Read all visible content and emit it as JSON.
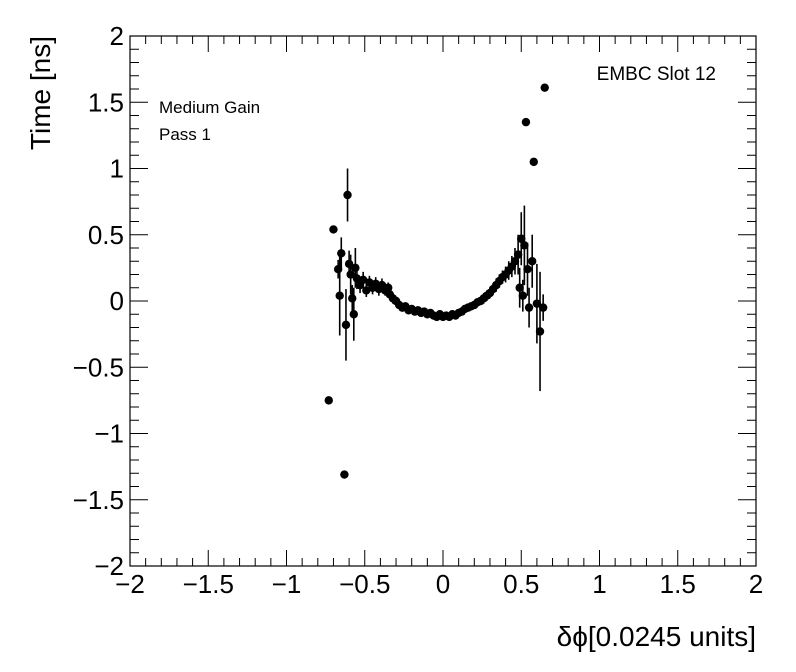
{
  "chart_data": {
    "type": "scatter",
    "xlabel": "δϕ[0.0245 units]",
    "ylabel": "Time [ns]",
    "xlim": [
      -2,
      2
    ],
    "ylim": [
      -2,
      2
    ],
    "x_ticks": [
      -2,
      -1.5,
      -1,
      -0.5,
      0,
      0.5,
      1,
      1.5,
      2
    ],
    "y_ticks": [
      -2,
      -1.5,
      -1,
      -0.5,
      0,
      0.5,
      1,
      1.5,
      2
    ],
    "x_tick_labels": [
      "−2",
      "−1.5",
      "−1",
      "−0.5",
      "0",
      "0.5",
      "1",
      "1.5",
      "2"
    ],
    "y_tick_labels": [
      "−2",
      "−1.5",
      "−1",
      "−0.5",
      "0",
      "0.5",
      "1",
      "1.5",
      "2"
    ],
    "grid": false,
    "legend": "none",
    "annotations": [
      {
        "text": "EMBC Slot 12",
        "position": "top-right"
      },
      {
        "text": "Medium Gain",
        "position": "top-left"
      },
      {
        "text": "Pass 1",
        "position": "top-left"
      }
    ],
    "marker_color": "#000000",
    "series": [
      {
        "points": [
          {
            "x": -0.73,
            "y": -0.75,
            "err": 0.0
          },
          {
            "x": -0.63,
            "y": -1.31,
            "err": 0.0
          },
          {
            "x": -0.7,
            "y": 0.54,
            "err": 0.0
          },
          {
            "x": -0.61,
            "y": 0.8,
            "err": 0.2
          },
          {
            "x": -0.67,
            "y": 0.24,
            "err": 0.07
          },
          {
            "x": -0.65,
            "y": 0.36,
            "err": 0.12
          },
          {
            "x": -0.66,
            "y": 0.04,
            "err": 0.3
          },
          {
            "x": -0.62,
            "y": -0.18,
            "err": 0.27
          },
          {
            "x": -0.6,
            "y": 0.28,
            "err": 0.1
          },
          {
            "x": -0.59,
            "y": 0.2,
            "err": 0.15
          },
          {
            "x": -0.57,
            "y": -0.1,
            "err": 0.2
          },
          {
            "x": -0.56,
            "y": 0.25,
            "err": 0.15
          },
          {
            "x": -0.58,
            "y": 0.02,
            "err": 0.1
          },
          {
            "x": -0.55,
            "y": 0.17,
            "err": 0.08
          },
          {
            "x": -0.53,
            "y": 0.12,
            "err": 0.06
          },
          {
            "x": -0.51,
            "y": 0.16,
            "err": 0.06
          },
          {
            "x": -0.49,
            "y": 0.08,
            "err": 0.05
          },
          {
            "x": -0.47,
            "y": 0.14,
            "err": 0.05
          },
          {
            "x": -0.45,
            "y": 0.1,
            "err": 0.05
          },
          {
            "x": -0.43,
            "y": 0.13,
            "err": 0.05
          },
          {
            "x": -0.41,
            "y": 0.09,
            "err": 0.05
          },
          {
            "x": -0.39,
            "y": 0.12,
            "err": 0.05
          },
          {
            "x": -0.37,
            "y": 0.08,
            "err": 0.04
          },
          {
            "x": -0.35,
            "y": 0.1,
            "err": 0.04
          },
          {
            "x": -0.34,
            "y": 0.05,
            "err": 0.04
          },
          {
            "x": -0.32,
            "y": 0.02,
            "err": 0.04
          },
          {
            "x": -0.3,
            "y": 0.0,
            "err": 0.03
          },
          {
            "x": -0.28,
            "y": -0.03,
            "err": 0.03
          },
          {
            "x": -0.26,
            "y": -0.05,
            "err": 0.03
          },
          {
            "x": -0.24,
            "y": -0.04,
            "err": 0.03
          },
          {
            "x": -0.22,
            "y": -0.07,
            "err": 0.03
          },
          {
            "x": -0.2,
            "y": -0.06,
            "err": 0.03
          },
          {
            "x": -0.18,
            "y": -0.08,
            "err": 0.03
          },
          {
            "x": -0.16,
            "y": -0.07,
            "err": 0.03
          },
          {
            "x": -0.14,
            "y": -0.09,
            "err": 0.03
          },
          {
            "x": -0.12,
            "y": -0.08,
            "err": 0.03
          },
          {
            "x": -0.1,
            "y": -0.1,
            "err": 0.03
          },
          {
            "x": -0.08,
            "y": -0.09,
            "err": 0.03
          },
          {
            "x": -0.06,
            "y": -0.11,
            "err": 0.03
          },
          {
            "x": -0.04,
            "y": -0.12,
            "err": 0.03
          },
          {
            "x": -0.02,
            "y": -0.1,
            "err": 0.03
          },
          {
            "x": 0.0,
            "y": -0.12,
            "err": 0.03
          },
          {
            "x": 0.02,
            "y": -0.11,
            "err": 0.03
          },
          {
            "x": 0.04,
            "y": -0.12,
            "err": 0.03
          },
          {
            "x": 0.06,
            "y": -0.1,
            "err": 0.03
          },
          {
            "x": 0.08,
            "y": -0.11,
            "err": 0.03
          },
          {
            "x": 0.1,
            "y": -0.09,
            "err": 0.03
          },
          {
            "x": 0.12,
            "y": -0.08,
            "err": 0.03
          },
          {
            "x": 0.14,
            "y": -0.06,
            "err": 0.03
          },
          {
            "x": 0.16,
            "y": -0.05,
            "err": 0.03
          },
          {
            "x": 0.18,
            "y": -0.04,
            "err": 0.03
          },
          {
            "x": 0.2,
            "y": -0.03,
            "err": 0.03
          },
          {
            "x": 0.22,
            "y": -0.01,
            "err": 0.03
          },
          {
            "x": 0.24,
            "y": 0.0,
            "err": 0.03
          },
          {
            "x": 0.26,
            "y": 0.02,
            "err": 0.04
          },
          {
            "x": 0.28,
            "y": 0.04,
            "err": 0.04
          },
          {
            "x": 0.3,
            "y": 0.06,
            "err": 0.04
          },
          {
            "x": 0.32,
            "y": 0.09,
            "err": 0.04
          },
          {
            "x": 0.34,
            "y": 0.12,
            "err": 0.05
          },
          {
            "x": 0.36,
            "y": 0.15,
            "err": 0.05
          },
          {
            "x": 0.38,
            "y": 0.18,
            "err": 0.05
          },
          {
            "x": 0.4,
            "y": 0.2,
            "err": 0.06
          },
          {
            "x": 0.42,
            "y": 0.23,
            "err": 0.07
          },
          {
            "x": 0.44,
            "y": 0.26,
            "err": 0.08
          },
          {
            "x": 0.46,
            "y": 0.3,
            "err": 0.1
          },
          {
            "x": 0.48,
            "y": 0.35,
            "err": 0.15
          },
          {
            "x": 0.5,
            "y": 0.47,
            "err": 0.2
          },
          {
            "x": 0.52,
            "y": 0.42,
            "err": 0.3
          },
          {
            "x": 0.49,
            "y": 0.1,
            "err": 0.15
          },
          {
            "x": 0.51,
            "y": 0.04,
            "err": 0.12
          },
          {
            "x": 0.54,
            "y": 0.24,
            "err": 0.2
          },
          {
            "x": 0.55,
            "y": -0.05,
            "err": 0.15
          },
          {
            "x": 0.57,
            "y": 0.3,
            "err": 0.2
          },
          {
            "x": 0.53,
            "y": 1.35,
            "err": 0.0
          },
          {
            "x": 0.58,
            "y": 1.05,
            "err": 0.0
          },
          {
            "x": 0.65,
            "y": 1.61,
            "err": 0.0
          },
          {
            "x": 0.6,
            "y": -0.02,
            "err": 0.3
          },
          {
            "x": 0.62,
            "y": -0.23,
            "err": 0.45
          },
          {
            "x": 0.64,
            "y": -0.05,
            "err": 0.1
          }
        ]
      }
    ]
  }
}
